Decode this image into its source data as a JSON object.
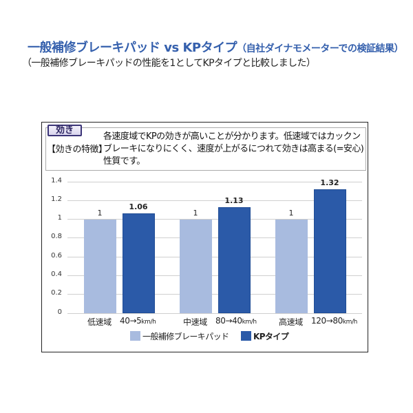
{
  "header": {
    "title_main": "一般補修ブレーキパッド vs KPタイプ",
    "title_note": "（自社ダイナモメーターでの検証結果）",
    "subtitle": "（一般補修ブレーキパッドの性能を1としてKPタイプと比較しました）"
  },
  "info": {
    "badge": "効き",
    "feature_label": "【効きの特徴】",
    "desc_lines": [
      "各速度域でKPの効きが高いことが分かります。低速域ではカックン",
      "ブレーキになりにくく、速度が上がるにつれて効きは高まる(=安心)",
      "性質です。"
    ]
  },
  "colors": {
    "title": "#3560ad",
    "general_pad": "#a8bbdf",
    "kp_type": "#2b5aa8"
  },
  "chart_data": {
    "type": "bar",
    "title": "効き",
    "xlabel": "",
    "ylabel": "",
    "ylim": [
      0,
      1.4
    ],
    "yticks": [
      "1.4",
      "1.2",
      "1",
      "0.8",
      "0.6",
      "0.4",
      "0.2",
      "0"
    ],
    "grid": true,
    "legend_position": "bottom",
    "categories": [
      {
        "zone": "低速域",
        "speed": "40→5",
        "unit": "km/h"
      },
      {
        "zone": "中速域",
        "speed": "80→40",
        "unit": "km/h"
      },
      {
        "zone": "高速域",
        "speed": "120→80",
        "unit": "km/h"
      }
    ],
    "series": [
      {
        "name": "一般補修ブレーキパッド",
        "values": [
          1,
          1,
          1
        ],
        "labels": [
          "1",
          "1",
          "1"
        ]
      },
      {
        "name": "KPタイプ",
        "values": [
          1.06,
          1.13,
          1.32
        ],
        "labels": [
          "1.06",
          "1.13",
          "1.32"
        ]
      }
    ]
  }
}
